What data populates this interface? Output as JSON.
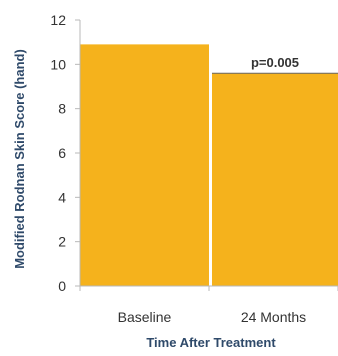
{
  "chart_data": {
    "type": "bar",
    "categories": [
      "Baseline",
      "24 Months"
    ],
    "values": [
      10.9,
      9.6
    ],
    "xlabel": "Time After Treatment",
    "ylabel": "Modified Rodnan Skin Score (hand)",
    "ylim": [
      0,
      12
    ],
    "yticks": [
      0,
      2,
      4,
      6,
      8,
      10,
      12
    ],
    "grid": false,
    "annotation": {
      "text": "p=0.005",
      "category": "24 Months"
    },
    "colors": {
      "bar": "#F5B21C",
      "axis": "#b8b8b8",
      "ytitle": "#2f4a6a"
    }
  }
}
